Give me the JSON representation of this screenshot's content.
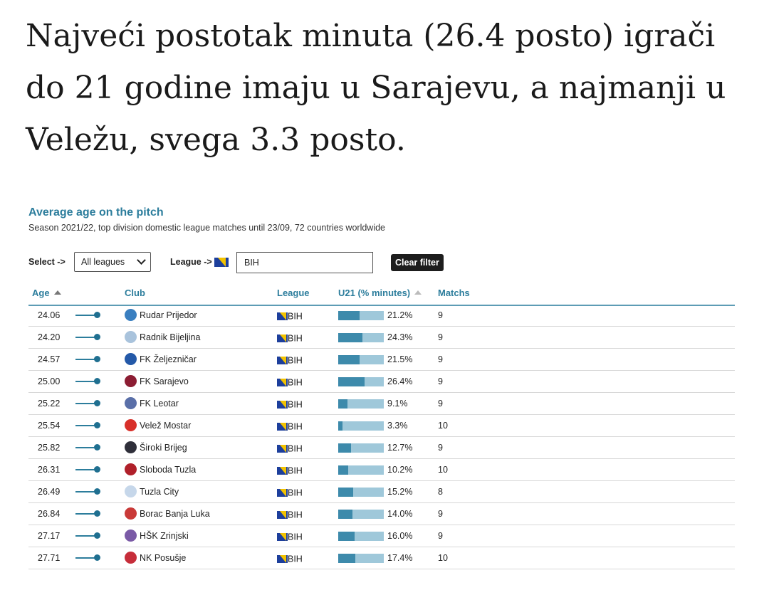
{
  "headline": "Najveći postotak minuta (26.4 posto) igrači do 21 godine imaju u Sarajevu, a najmanji u Veležu, svega 3.3 posto.",
  "widget": {
    "title": "Average age on the pitch",
    "subtitle": "Season 2021/22, top division domestic league matches until 23/09, 72 countries worldwide",
    "filters": {
      "select_label": "Select ->",
      "select_value": "All leagues",
      "league_label": "League ->",
      "league_value": "BIH",
      "clear_label": "Clear filter"
    },
    "columns": {
      "age": "Age",
      "club": "Club",
      "league": "League",
      "u21": "U21 (% minutes)",
      "matchs": "Matchs"
    },
    "accent_color": "#2c7d9c",
    "rows": [
      {
        "age": "24.06",
        "club": "Rudar Prijedor",
        "league": "BIH",
        "u21": "21.2%",
        "u21_value": 21.2,
        "matchs": "9",
        "badge_color": "#3a7fc0",
        "badge_icon": "rudar-prijedor-crest-icon"
      },
      {
        "age": "24.20",
        "club": "Radnik Bijeljina",
        "league": "BIH",
        "u21": "24.3%",
        "u21_value": 24.3,
        "matchs": "9",
        "badge_color": "#a9c3dc",
        "badge_icon": "radnik-bijeljina-crest-icon"
      },
      {
        "age": "24.57",
        "club": "FK Željezničar",
        "league": "BIH",
        "u21": "21.5%",
        "u21_value": 21.5,
        "matchs": "9",
        "badge_color": "#2459a8",
        "badge_icon": "zeljeznicar-crest-icon"
      },
      {
        "age": "25.00",
        "club": "FK Sarajevo",
        "league": "BIH",
        "u21": "26.4%",
        "u21_value": 26.4,
        "matchs": "9",
        "badge_color": "#8c1d33",
        "badge_icon": "sarajevo-crest-icon"
      },
      {
        "age": "25.22",
        "club": "FK Leotar",
        "league": "BIH",
        "u21": "9.1%",
        "u21_value": 9.1,
        "matchs": "9",
        "badge_color": "#5a6fa8",
        "badge_icon": "leotar-crest-icon"
      },
      {
        "age": "25.54",
        "club": "Velež Mostar",
        "league": "BIH",
        "u21": "3.3%",
        "u21_value": 3.3,
        "matchs": "10",
        "badge_color": "#d8302a",
        "badge_icon": "velez-star-icon"
      },
      {
        "age": "25.82",
        "club": "Široki Brijeg",
        "league": "BIH",
        "u21": "12.7%",
        "u21_value": 12.7,
        "matchs": "9",
        "badge_color": "#2f2f3a",
        "badge_icon": "siroki-brijeg-crest-icon"
      },
      {
        "age": "26.31",
        "club": "Sloboda Tuzla",
        "league": "BIH",
        "u21": "10.2%",
        "u21_value": 10.2,
        "matchs": "10",
        "badge_color": "#b0202a",
        "badge_icon": "sloboda-star-icon"
      },
      {
        "age": "26.49",
        "club": "Tuzla City",
        "league": "BIH",
        "u21": "15.2%",
        "u21_value": 15.2,
        "matchs": "8",
        "badge_color": "#c6d7ea",
        "badge_icon": "tuzla-city-crest-icon"
      },
      {
        "age": "26.84",
        "club": "Borac Banja Luka",
        "league": "BIH",
        "u21": "14.0%",
        "u21_value": 14.0,
        "matchs": "9",
        "badge_color": "#c93a38",
        "badge_icon": "borac-crest-icon"
      },
      {
        "age": "27.17",
        "club": "HŠK Zrinjski",
        "league": "BIH",
        "u21": "16.0%",
        "u21_value": 16.0,
        "matchs": "9",
        "badge_color": "#7a5aa6",
        "badge_icon": "zrinjski-crest-icon"
      },
      {
        "age": "27.71",
        "club": "NK Posušje",
        "league": "BIH",
        "u21": "17.4%",
        "u21_value": 17.4,
        "matchs": "10",
        "badge_color": "#c62d3a",
        "badge_icon": "posusje-checker-icon"
      }
    ]
  }
}
